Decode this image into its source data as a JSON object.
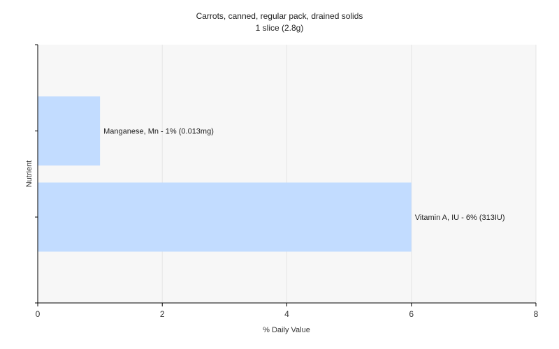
{
  "chart_data": {
    "type": "bar",
    "orientation": "horizontal",
    "title": "Carrots, canned, regular pack, drained solids",
    "subtitle": "1 slice (2.8g)",
    "xlabel": "% Daily Value",
    "ylabel": "Nutrient",
    "xlim": [
      0,
      8
    ],
    "xticks": [
      0,
      2,
      4,
      6,
      8
    ],
    "grid": true,
    "categories": [
      "Manganese, Mn",
      "Vitamin A, IU"
    ],
    "values": [
      1,
      6
    ],
    "data_labels": [
      "Manganese, Mn - 1% (0.013mg)",
      "Vitamin A, IU - 6% (313IU)"
    ],
    "colors": {
      "bar": "#c2dcff",
      "plot_background": "#f7f7f7",
      "grid": "#e6e6e6",
      "axis": "#000000"
    }
  }
}
